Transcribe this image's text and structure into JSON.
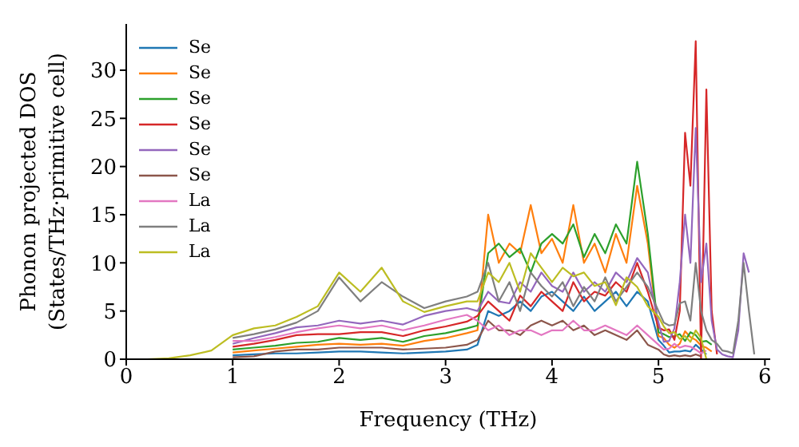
{
  "chart_data": {
    "type": "line",
    "xlabel": "Frequency (THz)",
    "ylabel": "Phonon projected DOS (States/THz·primitive cell)",
    "x": [
      0,
      0.2,
      0.4,
      0.6,
      0.8,
      1.0,
      1.2,
      1.4,
      1.6,
      1.8,
      2.0,
      2.2,
      2.4,
      2.6,
      2.8,
      3.0,
      3.2,
      3.3,
      3.4,
      3.5,
      3.6,
      3.7,
      3.8,
      3.9,
      4.0,
      4.1,
      4.2,
      4.3,
      4.4,
      4.5,
      4.6,
      4.7,
      4.8,
      4.9,
      5.0,
      5.05,
      5.1,
      5.15,
      5.2,
      5.25,
      5.3,
      5.35,
      5.4,
      5.45,
      5.5,
      5.55,
      5.6,
      5.65,
      5.7,
      5.75,
      5.8,
      5.85,
      5.9
    ],
    "series": [
      {
        "name": "Se",
        "color": "#1f77b4",
        "values": [
          null,
          null,
          null,
          null,
          null,
          0.4,
          0.5,
          0.6,
          0.6,
          0.7,
          0.8,
          0.8,
          0.7,
          0.6,
          0.7,
          0.8,
          1.0,
          1.5,
          5,
          4.5,
          5,
          6,
          5,
          6.5,
          7,
          6,
          5,
          6.5,
          5,
          6,
          7,
          5.5,
          7,
          6,
          2,
          1.4,
          0.7,
          0.8,
          0.8,
          0.9,
          0.8,
          1.5,
          1.0,
          0.5,
          null,
          null,
          null,
          null,
          null,
          null,
          null,
          null,
          null
        ]
      },
      {
        "name": "Se",
        "color": "#ff7f0e",
        "values": [
          null,
          null,
          null,
          null,
          null,
          0.7,
          0.9,
          1.1,
          1.3,
          1.5,
          1.6,
          1.5,
          1.6,
          1.4,
          1.9,
          2.2,
          2.7,
          3,
          15,
          10,
          12,
          11,
          16,
          11,
          12.5,
          10,
          16,
          10,
          12,
          9,
          13,
          10,
          18,
          12,
          2.4,
          2.2,
          1.5,
          1.2,
          1.6,
          2.9,
          2.3,
          2.0,
          1.4,
          1.2,
          0.8,
          null,
          null,
          null,
          null,
          null,
          null,
          null,
          null
        ]
      },
      {
        "name": "Se",
        "color": "#2ca02c",
        "values": [
          null,
          null,
          null,
          null,
          null,
          1.0,
          1.2,
          1.4,
          1.7,
          1.8,
          2.2,
          2.0,
          2.2,
          1.8,
          2.4,
          2.7,
          3.2,
          3.5,
          11,
          12,
          10.6,
          11.5,
          9,
          12,
          13,
          12,
          14,
          10.6,
          13,
          11,
          14,
          12,
          20.5,
          13,
          2.8,
          2.6,
          2.3,
          2.4,
          2.6,
          1.9,
          2.8,
          2.5,
          1.8,
          1.9,
          1.5,
          null,
          null,
          null,
          null,
          null,
          null,
          null,
          null
        ]
      },
      {
        "name": "Se",
        "color": "#d62728",
        "values": [
          null,
          null,
          null,
          null,
          null,
          1.3,
          1.6,
          2.0,
          2.5,
          2.6,
          2.6,
          2.8,
          2.8,
          2.4,
          3,
          3.4,
          3.9,
          4.5,
          6,
          5,
          4,
          6.6,
          5.5,
          7,
          6,
          5,
          8,
          6,
          7,
          6.6,
          8,
          7,
          10,
          7,
          3.3,
          3.0,
          3.1,
          2.0,
          5,
          23.5,
          18,
          33,
          0,
          28,
          5,
          0.5,
          null,
          null,
          null,
          null,
          null,
          null,
          null
        ]
      },
      {
        "name": "Se",
        "color": "#9467bd",
        "values": [
          null,
          null,
          null,
          null,
          null,
          1.6,
          2.2,
          2.7,
          3.3,
          3.5,
          4,
          3.7,
          4,
          3.6,
          4.5,
          5,
          5.3,
          5,
          7,
          6,
          5.8,
          8,
          7,
          9,
          7.6,
          7,
          9,
          7,
          8,
          7,
          9,
          8,
          10.5,
          9,
          3.8,
          1.8,
          1.9,
          3.2,
          8,
          15,
          10,
          24,
          8,
          12,
          4,
          1,
          0.5,
          0.3,
          0.2,
          3,
          11,
          9,
          null
        ]
      },
      {
        "name": "Se",
        "color": "#8c564b",
        "values": [
          null,
          null,
          null,
          null,
          null,
          0.2,
          0.3,
          0.8,
          1.0,
          1,
          1.2,
          1.2,
          1.2,
          1.0,
          1.1,
          1.2,
          1.5,
          2,
          4,
          3,
          3,
          2.5,
          3.5,
          4,
          3.5,
          4,
          3,
          3.5,
          2.5,
          3,
          2.5,
          2,
          3,
          1.5,
          1,
          0.5,
          0.3,
          0.4,
          0.3,
          0.4,
          0.3,
          0.5,
          0.3,
          null,
          null,
          null,
          null,
          null,
          null,
          null,
          null,
          null,
          null
        ]
      },
      {
        "name": "La",
        "color": "#e377c2",
        "values": [
          null,
          null,
          null,
          null,
          null,
          1.9,
          1.9,
          2.3,
          2.8,
          3.2,
          3.5,
          3.2,
          3.5,
          3.0,
          3.5,
          4.1,
          4.6,
          4,
          3,
          3.5,
          2.5,
          3,
          3.0,
          2.5,
          3.0,
          3,
          4,
          3,
          3.0,
          3.5,
          3,
          2.5,
          3.5,
          2.5,
          1.5,
          1.0,
          1.1,
          1.6,
          1.2,
          1.4,
          1.3,
          1.0,
          0.6,
          0.9,
          null,
          null,
          null,
          null,
          null,
          null,
          null,
          null,
          null
        ]
      },
      {
        "name": "La",
        "color": "#7f7f7f",
        "values": [
          null,
          null,
          null,
          null,
          null,
          2.2,
          2.6,
          3.1,
          3.8,
          5,
          8.5,
          6,
          8,
          6.5,
          5.3,
          6,
          6.5,
          7,
          10,
          6,
          8,
          5,
          9,
          7.6,
          6.5,
          8,
          5.5,
          7.5,
          6,
          8.5,
          6,
          7.5,
          9,
          7.5,
          5,
          3.8,
          3.5,
          3.6,
          5.8,
          6,
          4,
          10,
          5,
          3,
          2,
          1.6,
          0.9,
          0.8,
          0.6,
          4,
          10,
          5,
          0.5
        ]
      },
      {
        "name": "La",
        "color": "#bcbd22",
        "values": [
          0,
          0,
          0.1,
          0.4,
          0.9,
          2.5,
          3.2,
          3.5,
          4.4,
          5.5,
          9,
          7,
          9.5,
          6,
          4.9,
          5.5,
          6,
          6,
          9,
          8,
          10,
          7,
          11,
          9.5,
          8,
          9.5,
          8.6,
          9,
          7.6,
          8,
          5.6,
          8.5,
          7.5,
          5.5,
          4.4,
          3.4,
          2.7,
          2.8,
          2.1,
          2.4,
          1.8,
          3.0,
          2.2,
          0,
          0,
          0,
          null,
          null,
          null,
          null,
          null,
          null,
          null
        ]
      }
    ],
    "xlim": [
      0,
      6.05
    ],
    "xticks": [
      0,
      1,
      2,
      3,
      4,
      5,
      6
    ],
    "ylim": [
      0,
      34.8
    ],
    "yticks": [
      0,
      5,
      10,
      15,
      20,
      25,
      30
    ],
    "grid": false,
    "legend": "top left",
    "marker": "none",
    "line_style": "solid"
  }
}
